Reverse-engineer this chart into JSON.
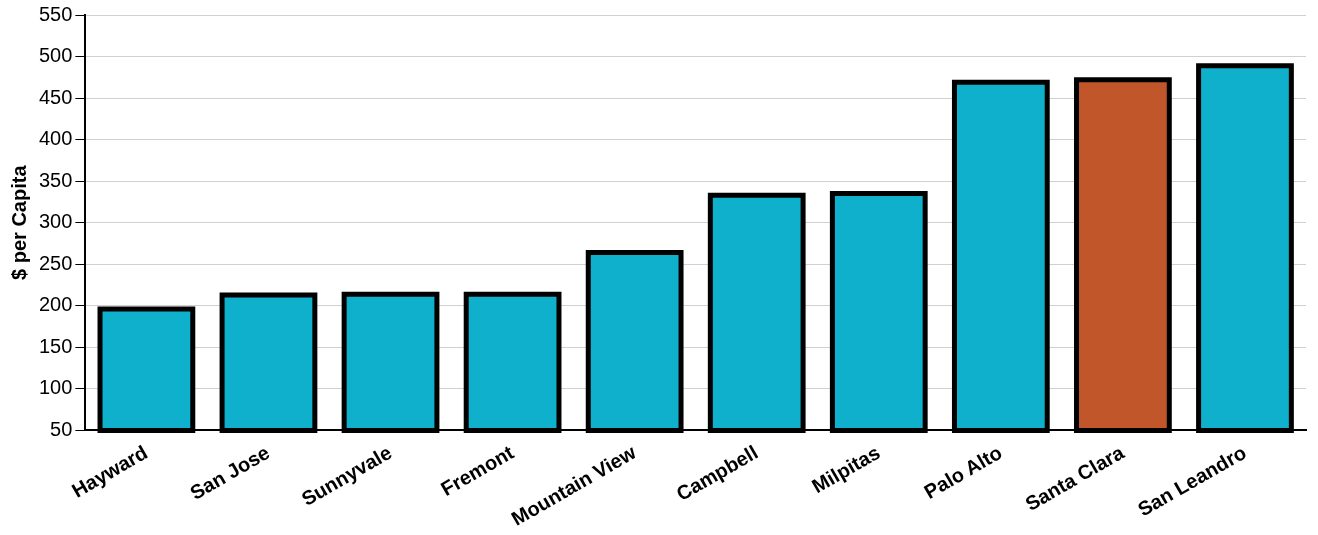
{
  "chart_data": {
    "type": "bar",
    "ylabel": "$ per Capita",
    "categories": [
      "Hayward",
      "San Jose",
      "Sunnyvale",
      "Fremont",
      "Mountain View",
      "Campbell",
      "Milpitas",
      "Palo Alto",
      "Santa Clara",
      "San Leandro"
    ],
    "values": [
      196,
      213,
      214,
      214,
      264,
      333,
      335,
      469,
      472,
      489
    ],
    "colors": [
      "#0fb0cc",
      "#0fb0cc",
      "#0fb0cc",
      "#0fb0cc",
      "#0fb0cc",
      "#0fb0cc",
      "#0fb0cc",
      "#0fb0cc",
      "#c0562a",
      "#0fb0cc"
    ],
    "ylim": [
      50,
      550
    ],
    "yticks": [
      50,
      100,
      150,
      200,
      250,
      300,
      350,
      400,
      450,
      500,
      550
    ],
    "grid": "y",
    "legend": false
  }
}
